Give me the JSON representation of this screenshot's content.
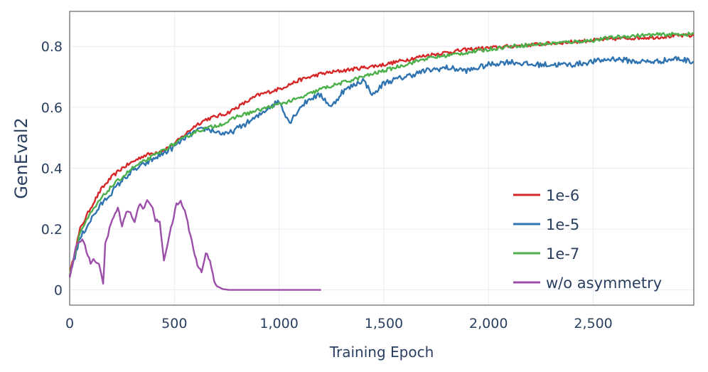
{
  "chart_data": {
    "type": "line",
    "title": "",
    "xlabel": "Training Epoch",
    "ylabel": "GenEval2",
    "xlim": [
      0,
      2980
    ],
    "ylim": [
      -0.05,
      0.915
    ],
    "xticks": [
      0,
      500,
      1000,
      1500,
      2000,
      2500
    ],
    "xtick_labels": [
      "0",
      "500",
      "1,000",
      "1,500",
      "2,000",
      "2,500"
    ],
    "yticks": [
      0,
      0.2,
      0.4,
      0.6,
      0.8
    ],
    "ytick_labels": [
      "0",
      "0.2",
      "0.4",
      "0.6",
      "0.8"
    ],
    "grid": true,
    "legend": "bottom-right",
    "series": [
      {
        "name": "1e-6",
        "color": "#d62728",
        "x": [
          0,
          50,
          100,
          150,
          200,
          250,
          300,
          350,
          400,
          450,
          500,
          550,
          600,
          650,
          700,
          750,
          800,
          850,
          900,
          950,
          1000,
          1100,
          1200,
          1300,
          1400,
          1500,
          1600,
          1700,
          1800,
          1900,
          2000,
          2100,
          2200,
          2300,
          2400,
          2500,
          2600,
          2700,
          2800,
          2900,
          2980
        ],
        "y": [
          0.05,
          0.2,
          0.27,
          0.33,
          0.37,
          0.4,
          0.42,
          0.44,
          0.45,
          0.46,
          0.48,
          0.51,
          0.54,
          0.56,
          0.57,
          0.58,
          0.6,
          0.62,
          0.64,
          0.65,
          0.66,
          0.69,
          0.71,
          0.72,
          0.73,
          0.74,
          0.755,
          0.77,
          0.78,
          0.79,
          0.795,
          0.8,
          0.805,
          0.81,
          0.815,
          0.82,
          0.825,
          0.828,
          0.83,
          0.835,
          0.835
        ]
      },
      {
        "name": "1e-5",
        "color": "#2f73b0",
        "x": [
          0,
          50,
          100,
          150,
          200,
          250,
          300,
          350,
          400,
          450,
          500,
          550,
          600,
          650,
          700,
          750,
          800,
          850,
          900,
          950,
          1000,
          1050,
          1100,
          1150,
          1200,
          1250,
          1300,
          1350,
          1400,
          1450,
          1500,
          1600,
          1700,
          1800,
          1900,
          2000,
          2100,
          2200,
          2300,
          2400,
          2500,
          2600,
          2700,
          2800,
          2900,
          2980
        ],
        "y": [
          0.05,
          0.17,
          0.23,
          0.28,
          0.32,
          0.36,
          0.39,
          0.41,
          0.43,
          0.45,
          0.47,
          0.5,
          0.52,
          0.53,
          0.52,
          0.51,
          0.53,
          0.55,
          0.57,
          0.6,
          0.62,
          0.55,
          0.6,
          0.63,
          0.64,
          0.6,
          0.65,
          0.67,
          0.69,
          0.64,
          0.68,
          0.7,
          0.72,
          0.73,
          0.72,
          0.74,
          0.75,
          0.74,
          0.74,
          0.74,
          0.75,
          0.76,
          0.75,
          0.75,
          0.76,
          0.75
        ]
      },
      {
        "name": "1e-7",
        "color": "#4daf4a",
        "x": [
          0,
          50,
          100,
          150,
          200,
          250,
          300,
          350,
          400,
          450,
          500,
          550,
          600,
          650,
          700,
          750,
          800,
          850,
          900,
          950,
          1000,
          1100,
          1200,
          1300,
          1400,
          1500,
          1600,
          1700,
          1800,
          1900,
          2000,
          2100,
          2200,
          2300,
          2400,
          2500,
          2600,
          2700,
          2800,
          2900,
          2980
        ],
        "y": [
          0.05,
          0.19,
          0.25,
          0.3,
          0.34,
          0.37,
          0.4,
          0.42,
          0.44,
          0.46,
          0.48,
          0.5,
          0.52,
          0.53,
          0.54,
          0.55,
          0.57,
          0.58,
          0.59,
          0.6,
          0.61,
          0.63,
          0.66,
          0.68,
          0.7,
          0.72,
          0.74,
          0.76,
          0.77,
          0.78,
          0.79,
          0.8,
          0.805,
          0.81,
          0.815,
          0.82,
          0.83,
          0.835,
          0.838,
          0.84,
          0.84
        ]
      },
      {
        "name": "w/o asymmetry",
        "color": "#9c4fa8",
        "x": [
          0,
          30,
          60,
          80,
          100,
          120,
          140,
          160,
          170,
          190,
          210,
          230,
          250,
          270,
          290,
          310,
          330,
          350,
          370,
          390,
          410,
          430,
          450,
          470,
          490,
          510,
          530,
          550,
          570,
          590,
          610,
          630,
          650,
          670,
          690,
          710,
          730,
          760,
          800,
          900,
          1000,
          1100,
          1200
        ],
        "y": [
          0.04,
          0.14,
          0.17,
          0.13,
          0.09,
          0.1,
          0.08,
          0.02,
          0.15,
          0.2,
          0.24,
          0.27,
          0.21,
          0.25,
          0.26,
          0.22,
          0.28,
          0.27,
          0.29,
          0.28,
          0.23,
          0.22,
          0.1,
          0.16,
          0.22,
          0.28,
          0.29,
          0.26,
          0.2,
          0.14,
          0.08,
          0.06,
          0.12,
          0.1,
          0.03,
          0.01,
          0.003,
          0,
          0,
          0,
          0,
          0,
          0
        ]
      }
    ]
  }
}
